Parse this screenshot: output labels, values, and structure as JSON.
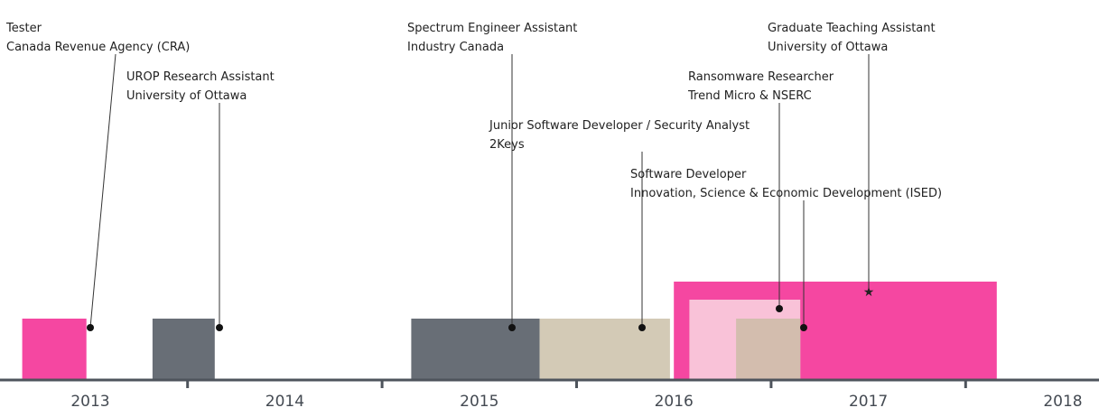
{
  "chart_data": {
    "type": "timeline",
    "title": "",
    "x_axis": {
      "unit": "year",
      "range": [
        2013.0,
        2018.0
      ],
      "ticks": [
        2013,
        2014,
        2015,
        2016,
        2017,
        2018
      ]
    },
    "entries": [
      {
        "id": "tester",
        "title": "Tester",
        "organization": "Canada Revenue Agency (CRA)",
        "start": 2012.65,
        "end": 2012.98,
        "color": "#f547a1",
        "marker": "dot",
        "tier": 0
      },
      {
        "id": "urop",
        "title": "UROP Research Assistant",
        "organization": "University of Ottawa",
        "start": 2013.32,
        "end": 2013.64,
        "color": "#686e76",
        "marker": "dot",
        "tier": 0
      },
      {
        "id": "spectrum",
        "title": "Spectrum Engineer Assistant",
        "organization": "Industry Canada",
        "start": 2014.65,
        "end": 2015.31,
        "color": "#686e76",
        "marker": "dot",
        "tier": 0
      },
      {
        "id": "twokeys",
        "title": "Junior Software Developer / Security Analyst",
        "organization": "2Keys",
        "start": 2015.31,
        "end": 2015.98,
        "color": "#d3cab6",
        "marker": "dot",
        "tier": 0
      },
      {
        "id": "gta",
        "title": "Graduate Teaching Assistant",
        "organization": "University of Ottawa",
        "start": 2016.0,
        "end": 2017.66,
        "color": "#f547a1",
        "marker": "star",
        "tier": 2
      },
      {
        "id": "ransomware",
        "title": "Ransomware Researcher",
        "organization": "Trend Micro & NSERC",
        "start": 2016.08,
        "end": 2016.65,
        "color": "#f9c2d8",
        "marker": "dot",
        "tier": 1
      },
      {
        "id": "ised",
        "title": "Software Developer",
        "organization": "Innovation, Science & Economic Development (ISED)",
        "start": 2016.32,
        "end": 2016.65,
        "color": "#d3bdae",
        "marker": "dot",
        "tier": 0
      }
    ],
    "colors": {
      "axis": "#4e545c",
      "text": "#222222",
      "year_label": "#444a52"
    }
  }
}
